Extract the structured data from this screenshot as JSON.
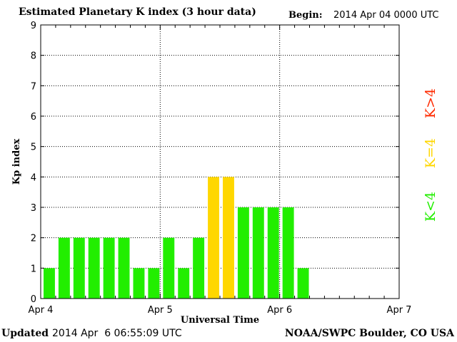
{
  "header": {
    "title": "Estimated Planetary K index (3 hour data)",
    "begin_label": "Begin:",
    "begin_value": "2014 Apr 04 0000 UTC"
  },
  "footer": {
    "updated_label": "Updated",
    "updated_value": "2014 Apr  6 06:55:09 UTC",
    "credit": "NOAA/SWPC Boulder, CO USA"
  },
  "chart_data": {
    "type": "bar",
    "title": "Estimated Planetary K index (3 hour data)",
    "xlabel": "Universal Time",
    "ylabel": "Kp index",
    "ylim": [
      0,
      9
    ],
    "yticks": [
      "0",
      "1",
      "2",
      "3",
      "4",
      "5",
      "6",
      "7",
      "8",
      "9"
    ],
    "x_tick_labels": [
      "Apr 4",
      "Apr 5",
      "Apr 6",
      "Apr 7"
    ],
    "slots_per_day": 8,
    "grid": true,
    "values": [
      1,
      2,
      2,
      2,
      2,
      2,
      1,
      1,
      2,
      1,
      2,
      4,
      4,
      3,
      3,
      3,
      3,
      1
    ],
    "colors": {
      "below": "#22ee00",
      "equal": "#ffd700",
      "above": "#ff2a00"
    },
    "legend": [
      {
        "label": "K<4",
        "color": "#22ee00"
      },
      {
        "label": "K=4",
        "color": "#ffd700"
      },
      {
        "label": "K>4",
        "color": "#ff2a00"
      }
    ]
  }
}
